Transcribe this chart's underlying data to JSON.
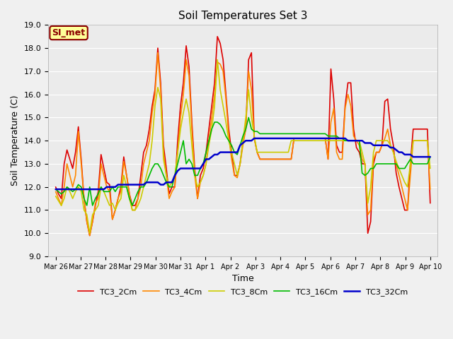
{
  "title": "Soil Temperatures Set 3",
  "xlabel": "Time",
  "ylabel": "Soil Temperature (C)",
  "ylim": [
    9.0,
    19.0
  ],
  "yticks": [
    9.0,
    10.0,
    11.0,
    12.0,
    13.0,
    14.0,
    15.0,
    16.0,
    17.0,
    18.0,
    19.0
  ],
  "annotation_text": "SI_met",
  "annotation_bg": "#ffff99",
  "annotation_border": "#8b0000",
  "annotation_text_color": "#8b0000",
  "series": {
    "TC3_2Cm": {
      "color": "#dd0000",
      "lw": 1.2
    },
    "TC3_4Cm": {
      "color": "#ff8800",
      "lw": 1.2
    },
    "TC3_8Cm": {
      "color": "#cccc00",
      "lw": 1.2
    },
    "TC3_16Cm": {
      "color": "#00bb00",
      "lw": 1.2
    },
    "TC3_32Cm": {
      "color": "#0000cc",
      "lw": 1.8
    }
  },
  "num_days": 16,
  "TC3_2Cm": [
    12.0,
    11.7,
    11.5,
    13.0,
    13.6,
    13.2,
    12.8,
    13.5,
    14.6,
    13.2,
    11.5,
    10.5,
    9.9,
    10.5,
    11.2,
    11.8,
    13.4,
    12.8,
    12.2,
    12.1,
    10.6,
    11.0,
    11.5,
    12.0,
    13.3,
    12.5,
    11.7,
    11.2,
    11.2,
    11.5,
    12.5,
    13.5,
    13.8,
    14.5,
    15.5,
    16.2,
    18.0,
    16.5,
    13.8,
    12.8,
    11.7,
    12.0,
    12.0,
    14.0,
    15.5,
    16.5,
    18.1,
    17.2,
    14.8,
    12.8,
    11.5,
    12.5,
    12.8,
    13.5,
    14.5,
    15.5,
    16.5,
    18.5,
    18.2,
    17.5,
    16.0,
    14.5,
    13.5,
    12.5,
    12.5,
    13.0,
    14.0,
    14.5,
    17.5,
    17.8,
    14.1,
    13.5,
    13.2,
    13.2,
    13.2,
    13.2,
    13.2,
    13.2,
    13.2,
    13.2,
    13.2,
    13.2,
    13.2,
    13.2,
    14.1,
    14.1,
    14.1,
    14.1,
    14.1,
    14.1,
    14.1,
    14.1,
    14.1,
    14.1,
    14.1,
    14.1,
    13.2,
    17.1,
    15.8,
    13.8,
    13.5,
    13.5,
    15.5,
    16.5,
    16.5,
    14.5,
    13.7,
    13.5,
    13.0,
    13.0,
    10.0,
    10.5,
    13.0,
    13.5,
    13.5,
    13.8,
    15.7,
    15.8,
    14.5,
    13.8,
    12.6,
    12.0,
    11.5,
    11.0,
    11.0,
    13.0,
    14.5,
    14.5,
    14.5,
    14.5,
    14.5,
    14.5,
    11.3
  ],
  "TC3_4Cm": [
    11.8,
    11.5,
    11.2,
    12.0,
    13.0,
    12.5,
    12.0,
    12.5,
    14.4,
    13.0,
    11.5,
    10.5,
    9.9,
    10.5,
    11.3,
    11.5,
    13.0,
    12.5,
    12.0,
    11.8,
    10.6,
    11.0,
    11.5,
    11.8,
    13.1,
    12.5,
    11.7,
    11.0,
    11.0,
    11.5,
    12.0,
    13.0,
    13.5,
    14.0,
    15.2,
    16.0,
    17.8,
    16.2,
    13.5,
    12.5,
    11.5,
    11.8,
    12.0,
    13.5,
    15.0,
    16.0,
    17.5,
    16.8,
    14.5,
    12.5,
    11.5,
    12.2,
    12.5,
    13.0,
    14.0,
    15.0,
    16.0,
    17.4,
    17.3,
    17.0,
    15.8,
    14.2,
    13.2,
    12.5,
    12.4,
    13.0,
    13.8,
    14.5,
    17.0,
    16.2,
    14.1,
    13.5,
    13.2,
    13.2,
    13.2,
    13.2,
    13.2,
    13.2,
    13.2,
    13.2,
    13.2,
    13.2,
    13.2,
    13.2,
    14.1,
    14.1,
    14.1,
    14.1,
    14.1,
    14.1,
    14.1,
    14.1,
    14.1,
    14.1,
    14.1,
    14.1,
    13.2,
    14.8,
    15.4,
    13.5,
    13.2,
    13.2,
    15.4,
    16.0,
    15.5,
    14.2,
    14.0,
    13.8,
    13.2,
    13.0,
    10.8,
    11.0,
    13.2,
    13.5,
    13.5,
    13.8,
    14.1,
    14.5,
    13.8,
    13.5,
    13.0,
    12.5,
    12.0,
    11.5,
    11.0,
    12.5,
    14.0,
    14.0,
    14.0,
    14.0,
    14.0,
    14.0,
    11.9
  ],
  "TC3_8Cm": [
    11.6,
    11.4,
    11.2,
    11.5,
    12.0,
    11.8,
    11.5,
    11.8,
    12.0,
    11.8,
    11.0,
    10.8,
    10.0,
    10.8,
    11.0,
    11.2,
    12.0,
    11.8,
    11.5,
    11.2,
    11.3,
    11.0,
    11.3,
    11.5,
    12.5,
    12.0,
    11.5,
    11.0,
    11.0,
    11.2,
    11.5,
    12.0,
    12.5,
    13.0,
    14.0,
    15.5,
    16.3,
    15.8,
    13.2,
    12.5,
    12.0,
    12.2,
    12.5,
    13.5,
    14.5,
    15.2,
    15.8,
    15.2,
    13.8,
    12.5,
    12.0,
    12.2,
    12.5,
    13.0,
    13.8,
    14.5,
    15.5,
    17.5,
    16.2,
    15.5,
    14.8,
    14.0,
    13.5,
    13.0,
    12.5,
    13.0,
    14.0,
    15.0,
    16.2,
    15.0,
    14.2,
    13.5,
    13.5,
    13.5,
    13.5,
    13.5,
    13.5,
    13.5,
    13.5,
    13.5,
    13.5,
    13.5,
    13.5,
    14.0,
    14.0,
    14.0,
    14.0,
    14.0,
    14.0,
    14.0,
    14.0,
    14.0,
    14.0,
    14.0,
    14.0,
    14.0,
    14.0,
    14.0,
    14.0,
    14.0,
    14.0,
    14.0,
    14.0,
    14.0,
    14.0,
    14.0,
    14.0,
    14.0,
    13.5,
    13.0,
    11.3,
    12.0,
    13.5,
    14.0,
    14.0,
    14.0,
    14.0,
    14.0,
    13.8,
    13.5,
    13.1,
    12.8,
    12.5,
    12.2,
    12.0,
    13.0,
    14.0,
    14.0,
    14.0,
    14.0,
    14.0,
    14.0,
    12.8
  ],
  "TC3_16Cm": [
    11.9,
    11.8,
    11.7,
    11.8,
    12.0,
    11.9,
    11.8,
    11.9,
    12.1,
    12.0,
    11.5,
    11.2,
    12.0,
    11.2,
    11.5,
    11.7,
    12.0,
    11.8,
    11.8,
    11.8,
    12.0,
    11.8,
    12.0,
    12.0,
    12.0,
    12.0,
    11.5,
    11.2,
    11.5,
    11.8,
    12.0,
    12.0,
    12.2,
    12.5,
    12.8,
    13.0,
    13.0,
    12.8,
    12.5,
    12.2,
    12.0,
    12.0,
    12.5,
    13.0,
    13.5,
    14.0,
    13.0,
    13.2,
    13.0,
    12.5,
    12.5,
    12.8,
    13.0,
    13.5,
    14.0,
    14.5,
    14.8,
    14.8,
    14.7,
    14.5,
    14.2,
    14.0,
    13.8,
    13.5,
    13.4,
    13.8,
    14.2,
    14.5,
    15.0,
    14.5,
    14.4,
    14.4,
    14.3,
    14.3,
    14.3,
    14.3,
    14.3,
    14.3,
    14.3,
    14.3,
    14.3,
    14.3,
    14.3,
    14.3,
    14.3,
    14.3,
    14.3,
    14.3,
    14.3,
    14.3,
    14.3,
    14.3,
    14.3,
    14.3,
    14.3,
    14.3,
    14.2,
    14.2,
    14.2,
    14.2,
    14.1,
    14.1,
    14.0,
    14.0,
    14.0,
    14.0,
    14.0,
    14.0,
    12.6,
    12.5,
    12.6,
    12.8,
    12.8,
    13.0,
    13.0,
    13.0,
    13.0,
    13.0,
    13.0,
    13.0,
    13.0,
    12.8,
    12.8,
    12.8,
    13.0,
    13.2,
    13.0,
    13.0,
    13.0,
    13.0,
    13.0,
    13.0,
    13.3
  ],
  "TC3_32Cm": [
    11.9,
    11.9,
    11.9,
    11.9,
    11.9,
    11.9,
    11.9,
    11.9,
    11.9,
    11.9,
    11.9,
    11.9,
    11.9,
    11.9,
    11.9,
    11.9,
    11.9,
    11.9,
    12.0,
    12.0,
    12.0,
    12.0,
    12.1,
    12.1,
    12.1,
    12.1,
    12.1,
    12.1,
    12.1,
    12.1,
    12.1,
    12.1,
    12.2,
    12.2,
    12.2,
    12.2,
    12.2,
    12.1,
    12.1,
    12.2,
    12.2,
    12.2,
    12.5,
    12.7,
    12.8,
    12.8,
    12.8,
    12.8,
    12.8,
    12.8,
    12.8,
    12.8,
    13.0,
    13.2,
    13.2,
    13.3,
    13.4,
    13.4,
    13.5,
    13.5,
    13.5,
    13.5,
    13.5,
    13.5,
    13.5,
    13.8,
    13.9,
    14.0,
    14.0,
    14.0,
    14.1,
    14.1,
    14.1,
    14.1,
    14.1,
    14.1,
    14.1,
    14.1,
    14.1,
    14.1,
    14.1,
    14.1,
    14.1,
    14.1,
    14.1,
    14.1,
    14.1,
    14.1,
    14.1,
    14.1,
    14.1,
    14.1,
    14.1,
    14.1,
    14.1,
    14.1,
    14.1,
    14.1,
    14.1,
    14.1,
    14.1,
    14.1,
    14.1,
    14.0,
    14.0,
    14.0,
    14.0,
    14.0,
    14.0,
    13.9,
    13.9,
    13.9,
    13.8,
    13.8,
    13.8,
    13.8,
    13.8,
    13.8,
    13.7,
    13.7,
    13.6,
    13.5,
    13.5,
    13.4,
    13.4,
    13.4,
    13.3,
    13.3,
    13.3,
    13.3,
    13.3,
    13.3,
    13.3
  ]
}
